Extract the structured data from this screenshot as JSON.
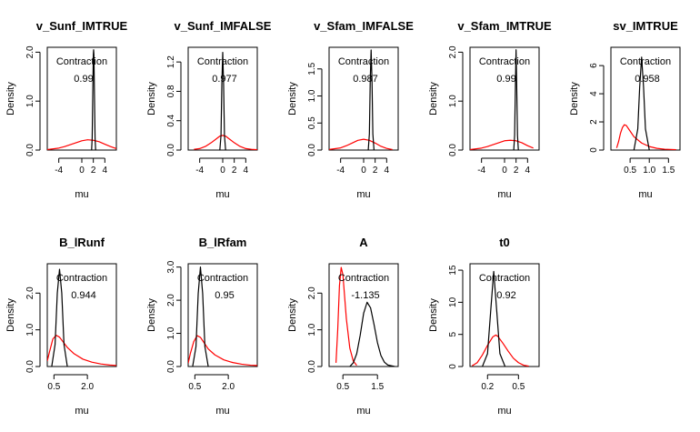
{
  "chart_data": [
    {
      "type": "line",
      "title": "v_Sunf_IMTRUE",
      "xlabel": "mu",
      "ylabel": "Density",
      "xlim": [
        -6,
        6
      ],
      "ylim": [
        0,
        2.1
      ],
      "xticks": [
        -4,
        0,
        2,
        4
      ],
      "xtick_labels": [
        "-4",
        "0",
        "2",
        "4"
      ],
      "yticks": [
        0,
        1,
        2
      ],
      "ytick_labels": [
        "0.0",
        "1.0",
        "2.0"
      ],
      "annotation": {
        "label": "Contraction",
        "value": "0.99"
      },
      "series": [
        {
          "color": "#ff0000",
          "x": [
            -6,
            -4,
            -3,
            -2,
            -1,
            0,
            1,
            2,
            3,
            4,
            5,
            6
          ],
          "y": [
            0.01,
            0.04,
            0.07,
            0.11,
            0.15,
            0.19,
            0.21,
            0.2,
            0.17,
            0.12,
            0.07,
            0.03
          ]
        },
        {
          "color": "#000000",
          "x": [
            1.7,
            1.8,
            1.9,
            2.0,
            2.05,
            2.1,
            2.2,
            2.3,
            2.4
          ],
          "y": [
            0,
            0.25,
            1.1,
            1.95,
            2.05,
            1.95,
            1.1,
            0.25,
            0
          ]
        }
      ]
    },
    {
      "type": "line",
      "title": "v_Sunf_IMFALSE",
      "xlabel": "mu",
      "ylabel": "Density",
      "xlim": [
        -6,
        6
      ],
      "ylim": [
        0,
        1.4
      ],
      "xticks": [
        -4,
        0,
        2,
        4
      ],
      "xtick_labels": [
        "-4",
        "0",
        "2",
        "4"
      ],
      "yticks": [
        0,
        0.4,
        0.8,
        1.2
      ],
      "ytick_labels": [
        "0.0",
        "0.4",
        "0.8",
        "1.2"
      ],
      "annotation": {
        "label": "Contraction",
        "value": "0.977"
      },
      "series": [
        {
          "color": "#ff0000",
          "x": [
            -5,
            -4,
            -3,
            -2,
            -1,
            -0.5,
            0,
            0.5,
            1,
            2,
            3,
            4,
            5,
            6
          ],
          "y": [
            0.01,
            0.02,
            0.05,
            0.1,
            0.16,
            0.19,
            0.2,
            0.19,
            0.16,
            0.1,
            0.05,
            0.02,
            0.01,
            0.005
          ]
        },
        {
          "color": "#000000",
          "x": [
            -0.5,
            -0.3,
            -0.15,
            0,
            0.15,
            0.3,
            0.5
          ],
          "y": [
            0,
            0.2,
            0.9,
            1.33,
            0.9,
            0.2,
            0
          ]
        }
      ]
    },
    {
      "type": "line",
      "title": "v_Sfam_IMFALSE",
      "xlabel": "mu",
      "ylabel": "Density",
      "xlim": [
        -6,
        6
      ],
      "ylim": [
        0,
        1.9
      ],
      "xticks": [
        -4,
        0,
        2,
        4
      ],
      "xtick_labels": [
        "-4",
        "0",
        "2",
        "4"
      ],
      "yticks": [
        0,
        0.5,
        1,
        1.5
      ],
      "ytick_labels": [
        "0.0",
        "0.5",
        "1.0",
        "1.5"
      ],
      "annotation": {
        "label": "Contraction",
        "value": "0.987"
      },
      "series": [
        {
          "color": "#ff0000",
          "x": [
            -6,
            -4,
            -3,
            -2,
            -1,
            0,
            1,
            2,
            3,
            4,
            5
          ],
          "y": [
            0.01,
            0.04,
            0.08,
            0.13,
            0.18,
            0.2,
            0.18,
            0.13,
            0.07,
            0.03,
            0.01
          ]
        },
        {
          "color": "#000000",
          "x": [
            0.8,
            1.0,
            1.15,
            1.3,
            1.45,
            1.6,
            1.8
          ],
          "y": [
            0,
            0.3,
            1.3,
            1.85,
            1.3,
            0.3,
            0
          ]
        }
      ]
    },
    {
      "type": "line",
      "title": "v_Sfam_IMTRUE",
      "xlabel": "mu",
      "ylabel": "Density",
      "xlim": [
        -6,
        6
      ],
      "ylim": [
        0,
        2.1
      ],
      "xticks": [
        -4,
        0,
        2,
        4
      ],
      "xtick_labels": [
        "-4",
        "0",
        "2",
        "4"
      ],
      "yticks": [
        0,
        1,
        2
      ],
      "ytick_labels": [
        "0.0",
        "1.0",
        "2.0"
      ],
      "annotation": {
        "label": "Contraction",
        "value": "0.99"
      },
      "series": [
        {
          "color": "#ff0000",
          "x": [
            -6,
            -4,
            -3,
            -2,
            -1,
            0,
            1,
            2,
            3,
            4,
            5
          ],
          "y": [
            0.01,
            0.04,
            0.07,
            0.11,
            0.15,
            0.19,
            0.2,
            0.19,
            0.15,
            0.09,
            0.04
          ]
        },
        {
          "color": "#000000",
          "x": [
            1.6,
            1.75,
            1.9,
            2.0,
            2.1,
            2.25,
            2.4
          ],
          "y": [
            0,
            0.3,
            1.4,
            2.05,
            1.4,
            0.3,
            0
          ]
        }
      ]
    },
    {
      "type": "line",
      "title": "sv_IMTRUE",
      "xlabel": "mu",
      "ylabel": "Density",
      "xlim": [
        0,
        1.8
      ],
      "ylim": [
        0,
        7.3
      ],
      "xticks": [
        0.5,
        1.0,
        1.5
      ],
      "xtick_labels": [
        "0.5",
        "1.0",
        "1.5"
      ],
      "yticks": [
        0,
        2,
        4,
        6
      ],
      "ytick_labels": [
        "0",
        "2",
        "4",
        "6"
      ],
      "annotation": {
        "label": "Contraction",
        "value": "0.958"
      },
      "series": [
        {
          "color": "#ff0000",
          "x": [
            0.15,
            0.2,
            0.25,
            0.3,
            0.35,
            0.4,
            0.5,
            0.6,
            0.8,
            1.0,
            1.2,
            1.4,
            1.7
          ],
          "y": [
            0.15,
            0.6,
            1.2,
            1.6,
            1.8,
            1.75,
            1.35,
            0.95,
            0.5,
            0.25,
            0.12,
            0.06,
            0.03
          ]
        },
        {
          "color": "#000000",
          "x": [
            0.6,
            0.7,
            0.75,
            0.8,
            0.85,
            0.9,
            1.0
          ],
          "y": [
            0,
            1.5,
            4.5,
            6.6,
            4.5,
            1.5,
            0
          ]
        }
      ]
    },
    {
      "type": "line",
      "title": "B_lRunf",
      "xlabel": "mu",
      "ylabel": "Density",
      "xlim": [
        0.2,
        3.3
      ],
      "ylim": [
        0,
        2.8
      ],
      "xticks": [
        0.5,
        2.0
      ],
      "xtick_labels": [
        "0.5",
        "2.0"
      ],
      "yticks": [
        0,
        1,
        2
      ],
      "ytick_labels": [
        "0.0",
        "1.0",
        "2.0"
      ],
      "annotation": {
        "label": "Contraction",
        "value": "0.944"
      },
      "series": [
        {
          "color": "#ff0000",
          "x": [
            0.2,
            0.3,
            0.45,
            0.6,
            0.75,
            0.9,
            1.1,
            1.4,
            1.8,
            2.2,
            2.6,
            3.0,
            3.3
          ],
          "y": [
            0.15,
            0.4,
            0.75,
            0.85,
            0.8,
            0.68,
            0.52,
            0.35,
            0.2,
            0.12,
            0.07,
            0.04,
            0.03
          ]
        },
        {
          "color": "#000000",
          "x": [
            0.4,
            0.55,
            0.65,
            0.75,
            0.85,
            0.95,
            1.1
          ],
          "y": [
            0,
            0.6,
            2.0,
            2.65,
            2.0,
            0.6,
            0
          ]
        }
      ]
    },
    {
      "type": "line",
      "title": "B_lRfam",
      "xlabel": "mu",
      "ylabel": "Density",
      "xlim": [
        0.2,
        3.3
      ],
      "ylim": [
        0,
        3.1
      ],
      "xticks": [
        0.5,
        2.0
      ],
      "xtick_labels": [
        "0.5",
        "2.0"
      ],
      "yticks": [
        0,
        1,
        2,
        3
      ],
      "ytick_labels": [
        "0.0",
        "1.0",
        "2.0",
        "3.0"
      ],
      "annotation": {
        "label": "Contraction",
        "value": "0.95"
      },
      "series": [
        {
          "color": "#ff0000",
          "x": [
            0.2,
            0.3,
            0.45,
            0.6,
            0.75,
            0.9,
            1.1,
            1.4,
            1.8,
            2.2,
            2.6,
            3.0,
            3.3
          ],
          "y": [
            0.1,
            0.4,
            0.75,
            0.93,
            0.88,
            0.73,
            0.53,
            0.35,
            0.2,
            0.12,
            0.07,
            0.04,
            0.03
          ]
        },
        {
          "color": "#000000",
          "x": [
            0.4,
            0.55,
            0.65,
            0.75,
            0.85,
            0.95,
            1.1
          ],
          "y": [
            0,
            0.6,
            2.2,
            3.0,
            2.2,
            0.6,
            0
          ]
        }
      ]
    },
    {
      "type": "line",
      "title": "A",
      "xlabel": "mu",
      "ylabel": "Density",
      "xlim": [
        0.1,
        2.1
      ],
      "ylim": [
        0,
        2.8
      ],
      "xticks": [
        0.5,
        1.5
      ],
      "xtick_labels": [
        "0.5",
        "1.5"
      ],
      "yticks": [
        0,
        1,
        2
      ],
      "ytick_labels": [
        "0.0",
        "1.0",
        "2.0"
      ],
      "annotation": {
        "label": "Contraction",
        "value": "-1.135"
      },
      "series": [
        {
          "color": "#ff0000",
          "x": [
            0.3,
            0.35,
            0.4,
            0.45,
            0.5,
            0.55,
            0.6,
            0.7,
            0.8,
            0.9
          ],
          "y": [
            0.1,
            1.0,
            2.2,
            2.7,
            2.5,
            1.9,
            1.3,
            0.5,
            0.15,
            0.03
          ]
        },
        {
          "color": "#000000",
          "x": [
            0.7,
            0.8,
            0.9,
            1.0,
            1.1,
            1.2,
            1.3,
            1.4,
            1.5,
            1.6,
            1.7,
            1.8,
            2.0
          ],
          "y": [
            0,
            0.1,
            0.35,
            0.85,
            1.45,
            1.75,
            1.6,
            1.15,
            0.65,
            0.3,
            0.12,
            0.04,
            0
          ]
        }
      ]
    },
    {
      "type": "line",
      "title": "t0",
      "xlabel": "mu",
      "ylabel": "Density",
      "xlim": [
        0.03,
        0.7
      ],
      "ylim": [
        0,
        16
      ],
      "xticks": [
        0.2,
        0.5
      ],
      "xtick_labels": [
        "0.2",
        "0.5"
      ],
      "yticks": [
        0,
        5,
        10,
        15
      ],
      "ytick_labels": [
        "0",
        "5",
        "10",
        "15"
      ],
      "annotation": {
        "label": "Contraction",
        "value": "0.92"
      },
      "series": [
        {
          "color": "#ff0000",
          "x": [
            0.05,
            0.1,
            0.15,
            0.2,
            0.25,
            0.28,
            0.3,
            0.35,
            0.4,
            0.45,
            0.5,
            0.55,
            0.6
          ],
          "y": [
            0.1,
            0.6,
            1.8,
            3.3,
            4.6,
            4.9,
            4.7,
            3.6,
            2.4,
            1.3,
            0.6,
            0.2,
            0.05
          ]
        },
        {
          "color": "#000000",
          "x": [
            0.15,
            0.2,
            0.23,
            0.26,
            0.29,
            0.32,
            0.37
          ],
          "y": [
            0,
            2.0,
            8.5,
            14.8,
            8.5,
            2.0,
            0
          ]
        }
      ]
    }
  ]
}
